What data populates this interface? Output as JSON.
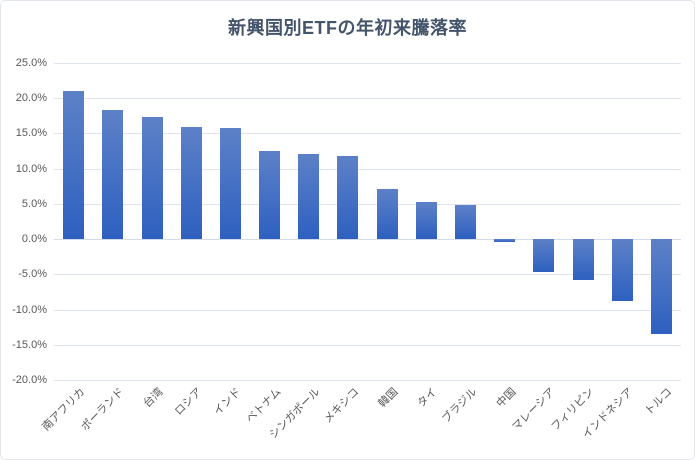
{
  "chart_data": {
    "type": "bar",
    "title": "新興国別ETFの年初来騰落率",
    "xlabel": "",
    "ylabel": "",
    "unit": "%",
    "categories": [
      "南アフリカ",
      "ポーランド",
      "台湾",
      "ロシア",
      "インド",
      "ベトナム",
      "シンガポール",
      "メキシコ",
      "韓国",
      "タイ",
      "ブラジル",
      "中国",
      "マレーシア",
      "フィリピン",
      "インドネシア",
      "トルコ"
    ],
    "values": [
      21.1,
      18.4,
      17.3,
      15.9,
      15.8,
      12.5,
      12.1,
      11.8,
      7.1,
      5.3,
      4.9,
      -0.4,
      -4.7,
      -5.8,
      -8.8,
      -13.5
    ],
    "ylim": [
      -20,
      25
    ],
    "ytick_step": 5,
    "ytick_labels": [
      "25.0%",
      "20.0%",
      "15.0%",
      "10.0%",
      "5.0%",
      "0.0%",
      "-5.0%",
      "-10.0%",
      "-15.0%",
      "-20.0%"
    ],
    "grid": true,
    "legend": false,
    "bar_orientation": "vertical",
    "x_label_rotation_deg": 45,
    "colors": {
      "bar_gradient_top": "#5d81c7",
      "bar_gradient_bottom": "#2e60c0",
      "gridline": "#dde4ee",
      "zero_axis_line": "#d3dbe6",
      "title_text": "#44546a",
      "axis_label_text": "#595959",
      "background": "#ffffff",
      "chart_border": "#e1e6ec"
    }
  }
}
